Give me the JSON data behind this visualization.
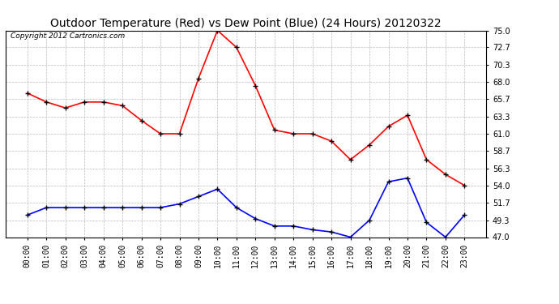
{
  "title": "Outdoor Temperature (Red) vs Dew Point (Blue) (24 Hours) 20120322",
  "copyright_text": "Copyright 2012 Cartronics.com",
  "hours": [
    "00:00",
    "01:00",
    "02:00",
    "03:00",
    "04:00",
    "05:00",
    "06:00",
    "07:00",
    "08:00",
    "09:00",
    "10:00",
    "11:00",
    "12:00",
    "13:00",
    "14:00",
    "15:00",
    "16:00",
    "17:00",
    "18:00",
    "19:00",
    "20:00",
    "21:00",
    "22:00",
    "23:00"
  ],
  "temp_red": [
    66.5,
    65.3,
    64.5,
    65.3,
    65.3,
    64.8,
    62.8,
    61.0,
    61.0,
    68.5,
    75.0,
    72.7,
    67.5,
    61.5,
    61.0,
    61.0,
    60.0,
    57.5,
    59.5,
    62.0,
    63.5,
    57.5,
    55.5,
    54.0
  ],
  "dew_blue": [
    50.0,
    51.0,
    51.0,
    51.0,
    51.0,
    51.0,
    51.0,
    51.0,
    51.5,
    52.5,
    53.5,
    51.0,
    49.5,
    48.5,
    48.5,
    48.0,
    47.7,
    47.0,
    49.3,
    54.5,
    55.0,
    49.0,
    47.0,
    50.0
  ],
  "ylim_min": 47.0,
  "ylim_max": 75.0,
  "yticks": [
    47.0,
    49.3,
    51.7,
    54.0,
    56.3,
    58.7,
    61.0,
    63.3,
    65.7,
    68.0,
    70.3,
    72.7,
    75.0
  ],
  "line_color_red": "#ff0000",
  "line_color_blue": "#0000ff",
  "background_color": "#ffffff",
  "grid_color": "#bbbbbb",
  "title_fontsize": 10,
  "tick_fontsize": 7,
  "copyright_fontsize": 6.5
}
